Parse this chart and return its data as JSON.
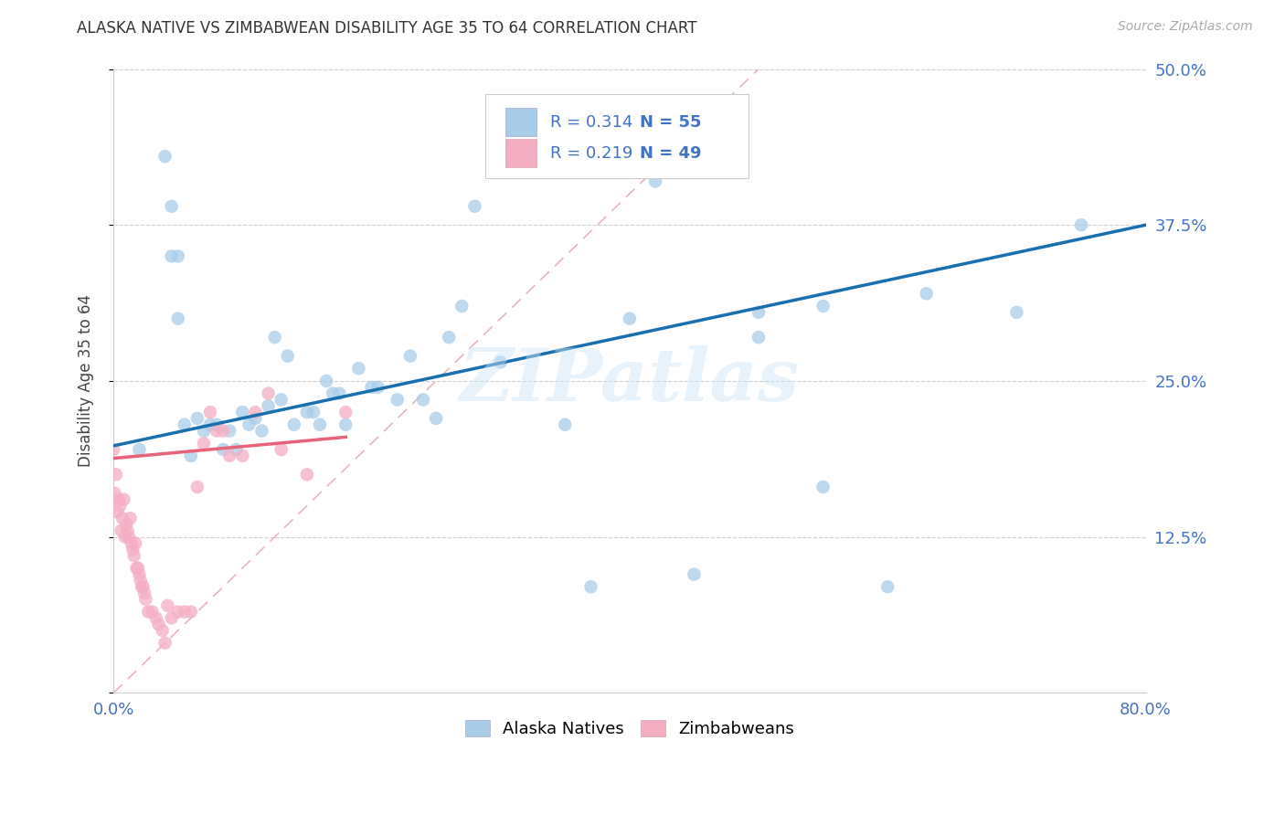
{
  "title": "ALASKA NATIVE VS ZIMBABWEAN DISABILITY AGE 35 TO 64 CORRELATION CHART",
  "source": "Source: ZipAtlas.com",
  "ylabel": "Disability Age 35 to 64",
  "xlim": [
    0.0,
    0.8
  ],
  "ylim": [
    0.0,
    0.5
  ],
  "yticks": [
    0.0,
    0.125,
    0.25,
    0.375,
    0.5
  ],
  "ytick_labels_right": [
    "",
    "12.5%",
    "25.0%",
    "37.5%",
    "50.0%"
  ],
  "xtick_positions": [
    0.0,
    0.1,
    0.2,
    0.3,
    0.4,
    0.5,
    0.6,
    0.7,
    0.8
  ],
  "xtick_labels": [
    "0.0%",
    "",
    "",
    "",
    "",
    "",
    "",
    "",
    "80.0%"
  ],
  "legend_r1": "R = 0.314",
  "legend_n1": "N = 55",
  "legend_r2": "R = 0.219",
  "legend_n2": "N = 49",
  "blue_scatter": "#a8cce8",
  "pink_scatter": "#f4aec4",
  "blue_line": "#1a6faf",
  "pink_line": "#e8637a",
  "ref_line_color": "#e8b4c0",
  "tick_label_color": "#4472c4",
  "watermark": "ZIPatlas",
  "alaska_x": [
    0.02,
    0.04,
    0.045,
    0.045,
    0.05,
    0.05,
    0.055,
    0.06,
    0.065,
    0.07,
    0.075,
    0.08,
    0.085,
    0.09,
    0.095,
    0.1,
    0.105,
    0.11,
    0.115,
    0.12,
    0.125,
    0.13,
    0.135,
    0.14,
    0.15,
    0.155,
    0.16,
    0.165,
    0.17,
    0.175,
    0.18,
    0.19,
    0.2,
    0.205,
    0.22,
    0.23,
    0.24,
    0.25,
    0.26,
    0.27,
    0.28,
    0.3,
    0.35,
    0.37,
    0.4,
    0.42,
    0.45,
    0.5,
    0.55,
    0.6,
    0.5,
    0.55,
    0.7,
    0.75,
    0.63
  ],
  "alaska_y": [
    0.195,
    0.43,
    0.39,
    0.35,
    0.35,
    0.3,
    0.215,
    0.19,
    0.22,
    0.21,
    0.215,
    0.215,
    0.195,
    0.21,
    0.195,
    0.225,
    0.215,
    0.22,
    0.21,
    0.23,
    0.285,
    0.235,
    0.27,
    0.215,
    0.225,
    0.225,
    0.215,
    0.25,
    0.24,
    0.24,
    0.215,
    0.26,
    0.245,
    0.245,
    0.235,
    0.27,
    0.235,
    0.22,
    0.285,
    0.31,
    0.39,
    0.265,
    0.215,
    0.085,
    0.3,
    0.41,
    0.095,
    0.285,
    0.165,
    0.085,
    0.305,
    0.31,
    0.305,
    0.375,
    0.32
  ],
  "zimbabwe_x": [
    0.0,
    0.001,
    0.002,
    0.003,
    0.004,
    0.005,
    0.006,
    0.007,
    0.008,
    0.009,
    0.01,
    0.011,
    0.012,
    0.013,
    0.014,
    0.015,
    0.016,
    0.017,
    0.018,
    0.019,
    0.02,
    0.021,
    0.022,
    0.023,
    0.024,
    0.025,
    0.027,
    0.03,
    0.033,
    0.035,
    0.038,
    0.04,
    0.042,
    0.045,
    0.05,
    0.055,
    0.06,
    0.065,
    0.07,
    0.075,
    0.08,
    0.085,
    0.09,
    0.1,
    0.11,
    0.12,
    0.13,
    0.15,
    0.18
  ],
  "zimbabwe_y": [
    0.195,
    0.16,
    0.175,
    0.145,
    0.155,
    0.15,
    0.13,
    0.14,
    0.155,
    0.125,
    0.135,
    0.13,
    0.125,
    0.14,
    0.12,
    0.115,
    0.11,
    0.12,
    0.1,
    0.1,
    0.095,
    0.09,
    0.085,
    0.085,
    0.08,
    0.075,
    0.065,
    0.065,
    0.06,
    0.055,
    0.05,
    0.04,
    0.07,
    0.06,
    0.065,
    0.065,
    0.065,
    0.165,
    0.2,
    0.225,
    0.21,
    0.21,
    0.19,
    0.19,
    0.225,
    0.24,
    0.195,
    0.175,
    0.225
  ],
  "blue_line_x0": 0.0,
  "blue_line_y0": 0.198,
  "blue_line_x1": 0.8,
  "blue_line_y1": 0.375,
  "pink_line_x0": 0.0,
  "pink_line_y0": 0.188,
  "pink_line_x1": 0.18,
  "pink_line_y1": 0.205
}
